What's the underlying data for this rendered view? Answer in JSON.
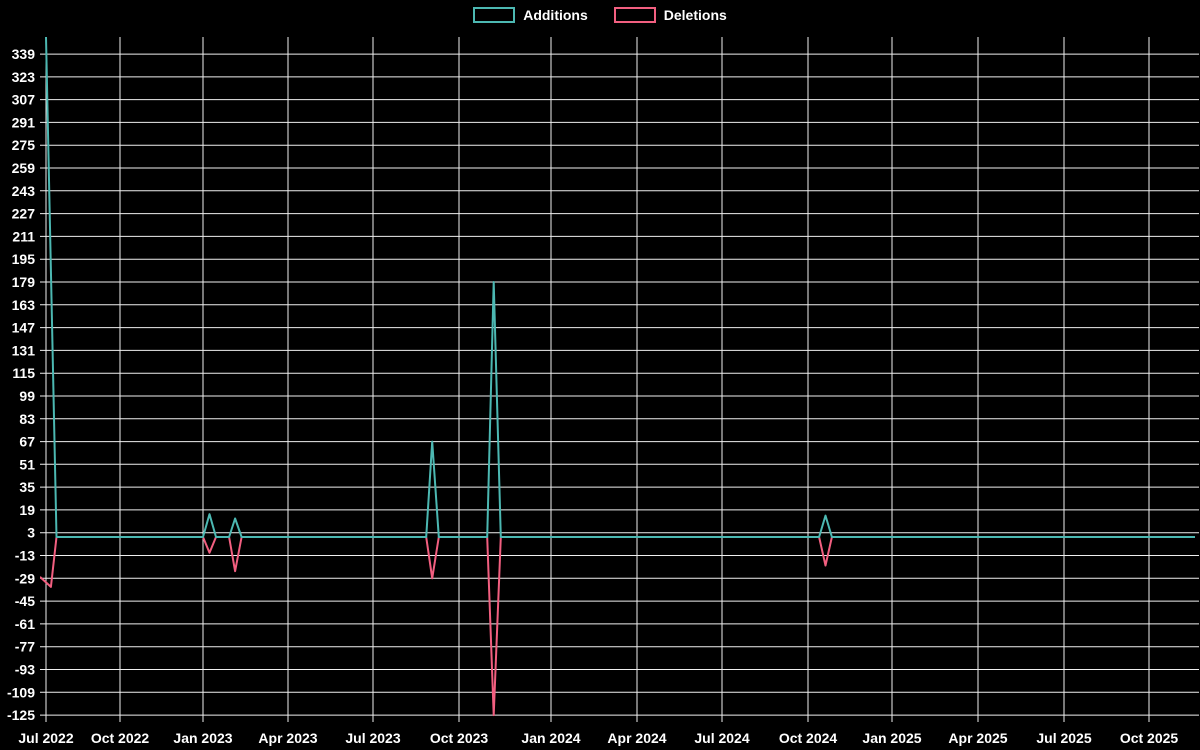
{
  "colors": {
    "background": "#000000",
    "gridline": "#efefef",
    "axis_text": "#ffffff",
    "additions": "#4cb8b2",
    "deletions": "#f25f80"
  },
  "chart_data": {
    "type": "line",
    "title": "",
    "legend_position": "top-center",
    "grid": true,
    "x_tick_labels": [
      "Jul 2022",
      "Oct 2022",
      "Jan 2023",
      "Apr 2023",
      "Jul 2023",
      "Oct 2023",
      "Jan 2024",
      "Apr 2024",
      "Jul 2024",
      "Oct 2024",
      "Jan 2025",
      "Apr 2025",
      "Jul 2025",
      "Oct 2025"
    ],
    "y_ticks": [
      339,
      323,
      307,
      291,
      275,
      259,
      243,
      227,
      211,
      195,
      179,
      163,
      147,
      131,
      115,
      99,
      83,
      67,
      51,
      35,
      19,
      3,
      -13,
      -29,
      -45,
      -61,
      -77,
      -93,
      -109,
      -125
    ],
    "y_axis": {
      "labeled_min": -125,
      "labeled_max": 339,
      "tick_step": 16,
      "baseline_value": 0,
      "top_edge_value": 351
    },
    "series": [
      {
        "name": "Additions",
        "color": "#4cb8b2",
        "points": [
          [
            "2022-07-01",
            351,
            "spike clipped at top edge of chart"
          ],
          [
            "2022-07-14",
            0
          ],
          [
            "2023-01-01",
            0
          ],
          [
            "2023-01-08",
            16
          ],
          [
            "2023-01-15",
            0
          ],
          [
            "2023-01-29",
            0
          ],
          [
            "2023-02-05",
            13
          ],
          [
            "2023-02-12",
            0
          ],
          [
            "2023-08-27",
            0
          ],
          [
            "2023-09-03",
            67
          ],
          [
            "2023-09-10",
            0
          ],
          [
            "2023-10-29",
            0
          ],
          [
            "2023-11-05",
            179
          ],
          [
            "2023-11-12",
            0
          ],
          [
            "2024-10-13",
            0
          ],
          [
            "2024-10-20",
            15
          ],
          [
            "2024-10-27",
            0
          ],
          [
            "2025-11-20",
            0
          ]
        ]
      },
      {
        "name": "Deletions",
        "color": "#f25f80",
        "points": [
          [
            "2022-06-24",
            -28,
            "enters at left edge of chart"
          ],
          [
            "2022-07-07",
            -35
          ],
          [
            "2022-07-14",
            0
          ],
          [
            "2023-01-01",
            0
          ],
          [
            "2023-01-08",
            -11
          ],
          [
            "2023-01-15",
            0
          ],
          [
            "2023-01-29",
            0
          ],
          [
            "2023-02-05",
            -24
          ],
          [
            "2023-02-12",
            0
          ],
          [
            "2023-08-27",
            0
          ],
          [
            "2023-09-03",
            -29
          ],
          [
            "2023-09-10",
            0
          ],
          [
            "2023-10-29",
            0
          ],
          [
            "2023-11-05",
            -125,
            "reaches bottom edge of chart"
          ],
          [
            "2023-11-12",
            0
          ],
          [
            "2024-10-13",
            0
          ],
          [
            "2024-10-20",
            -20
          ],
          [
            "2024-10-27",
            0
          ],
          [
            "2025-11-20",
            0
          ]
        ]
      }
    ]
  }
}
